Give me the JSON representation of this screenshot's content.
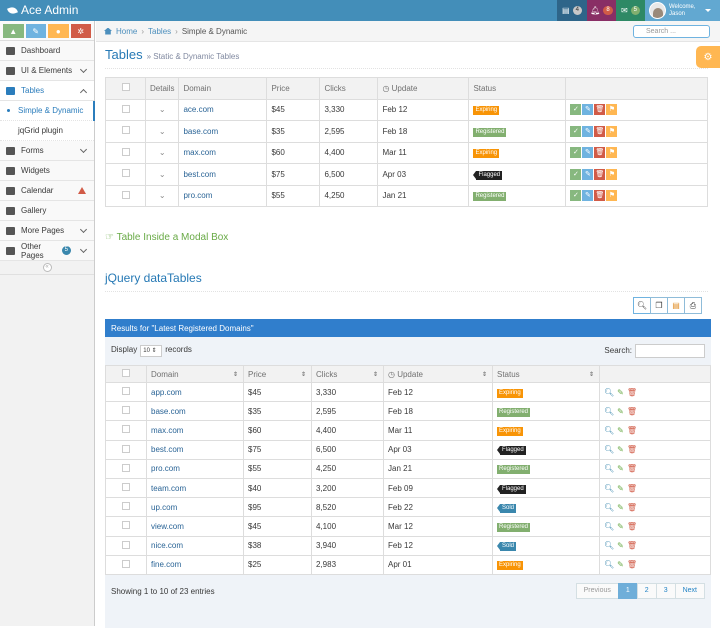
{
  "app": {
    "title": "Ace Admin"
  },
  "topnav": {
    "tasks_count": "4",
    "notifications_count": "8",
    "messages_count": "5",
    "welcome": "Welcome,",
    "user": "Jason"
  },
  "sidebar": {
    "items": [
      {
        "label": "Dashboard",
        "icon": "dashboard-icon"
      },
      {
        "label": "UI & Elements",
        "icon": "desktop-icon"
      },
      {
        "label": "Tables",
        "icon": "list-icon"
      },
      {
        "label": "Forms",
        "icon": "edit-icon"
      },
      {
        "label": "Widgets",
        "icon": "widgets-icon"
      },
      {
        "label": "Calendar",
        "icon": "calendar-icon"
      },
      {
        "label": "Gallery",
        "icon": "picture-icon"
      },
      {
        "label": "More Pages",
        "icon": "tag-icon"
      },
      {
        "label": "Other Pages",
        "icon": "file-icon",
        "badge": "5"
      }
    ],
    "subitems": [
      "Simple & Dynamic",
      "jqGrid plugin"
    ]
  },
  "breadcrumb": {
    "home": "Home",
    "tables": "Tables",
    "current": "Simple & Dynamic"
  },
  "search": {
    "placeholder": "Search ..."
  },
  "page": {
    "title": "Tables",
    "subtitle": "» Static & Dynamic Tables"
  },
  "table1": {
    "headers": [
      "Details",
      "Domain",
      "Price",
      "Clicks",
      "Update",
      "Status"
    ],
    "rows": [
      {
        "domain": "ace.com",
        "price": "$45",
        "clicks": "3,330",
        "update": "Feb 12",
        "status": "Expiring"
      },
      {
        "domain": "base.com",
        "price": "$35",
        "clicks": "2,595",
        "update": "Feb 18",
        "status": "Registered"
      },
      {
        "domain": "max.com",
        "price": "$60",
        "clicks": "4,400",
        "update": "Mar 11",
        "status": "Expiring"
      },
      {
        "domain": "best.com",
        "price": "$75",
        "clicks": "6,500",
        "update": "Apr 03",
        "status": "Flagged"
      },
      {
        "domain": "pro.com",
        "price": "$55",
        "clicks": "4,250",
        "update": "Jan 21",
        "status": "Registered"
      }
    ]
  },
  "modal_link": "Table Inside a Modal Box",
  "datatables": {
    "title": "jQuery dataTables",
    "results_header": "Results for \"Latest Registered Domains\"",
    "display": "Display",
    "records": "records",
    "length": "10",
    "search_label": "Search:",
    "headers": [
      "Domain",
      "Price",
      "Clicks",
      "Update",
      "Status"
    ],
    "rows": [
      {
        "domain": "app.com",
        "price": "$45",
        "clicks": "3,330",
        "update": "Feb 12",
        "status": "Expiring"
      },
      {
        "domain": "base.com",
        "price": "$35",
        "clicks": "2,595",
        "update": "Feb 18",
        "status": "Registered"
      },
      {
        "domain": "max.com",
        "price": "$60",
        "clicks": "4,400",
        "update": "Mar 11",
        "status": "Expiring"
      },
      {
        "domain": "best.com",
        "price": "$75",
        "clicks": "6,500",
        "update": "Apr 03",
        "status": "Flagged"
      },
      {
        "domain": "pro.com",
        "price": "$55",
        "clicks": "4,250",
        "update": "Jan 21",
        "status": "Registered"
      },
      {
        "domain": "team.com",
        "price": "$40",
        "clicks": "3,200",
        "update": "Feb 09",
        "status": "Flagged"
      },
      {
        "domain": "up.com",
        "price": "$95",
        "clicks": "8,520",
        "update": "Feb 22",
        "status": "Sold"
      },
      {
        "domain": "view.com",
        "price": "$45",
        "clicks": "4,100",
        "update": "Mar 12",
        "status": "Registered"
      },
      {
        "domain": "nice.com",
        "price": "$38",
        "clicks": "3,940",
        "update": "Feb 12",
        "status": "Sold"
      },
      {
        "domain": "fine.com",
        "price": "$25",
        "clicks": "2,983",
        "update": "Apr 01",
        "status": "Expiring"
      }
    ],
    "info": "Showing 1 to 10 of 23 entries",
    "pager": [
      "Previous",
      "1",
      "2",
      "3",
      "Next"
    ]
  }
}
